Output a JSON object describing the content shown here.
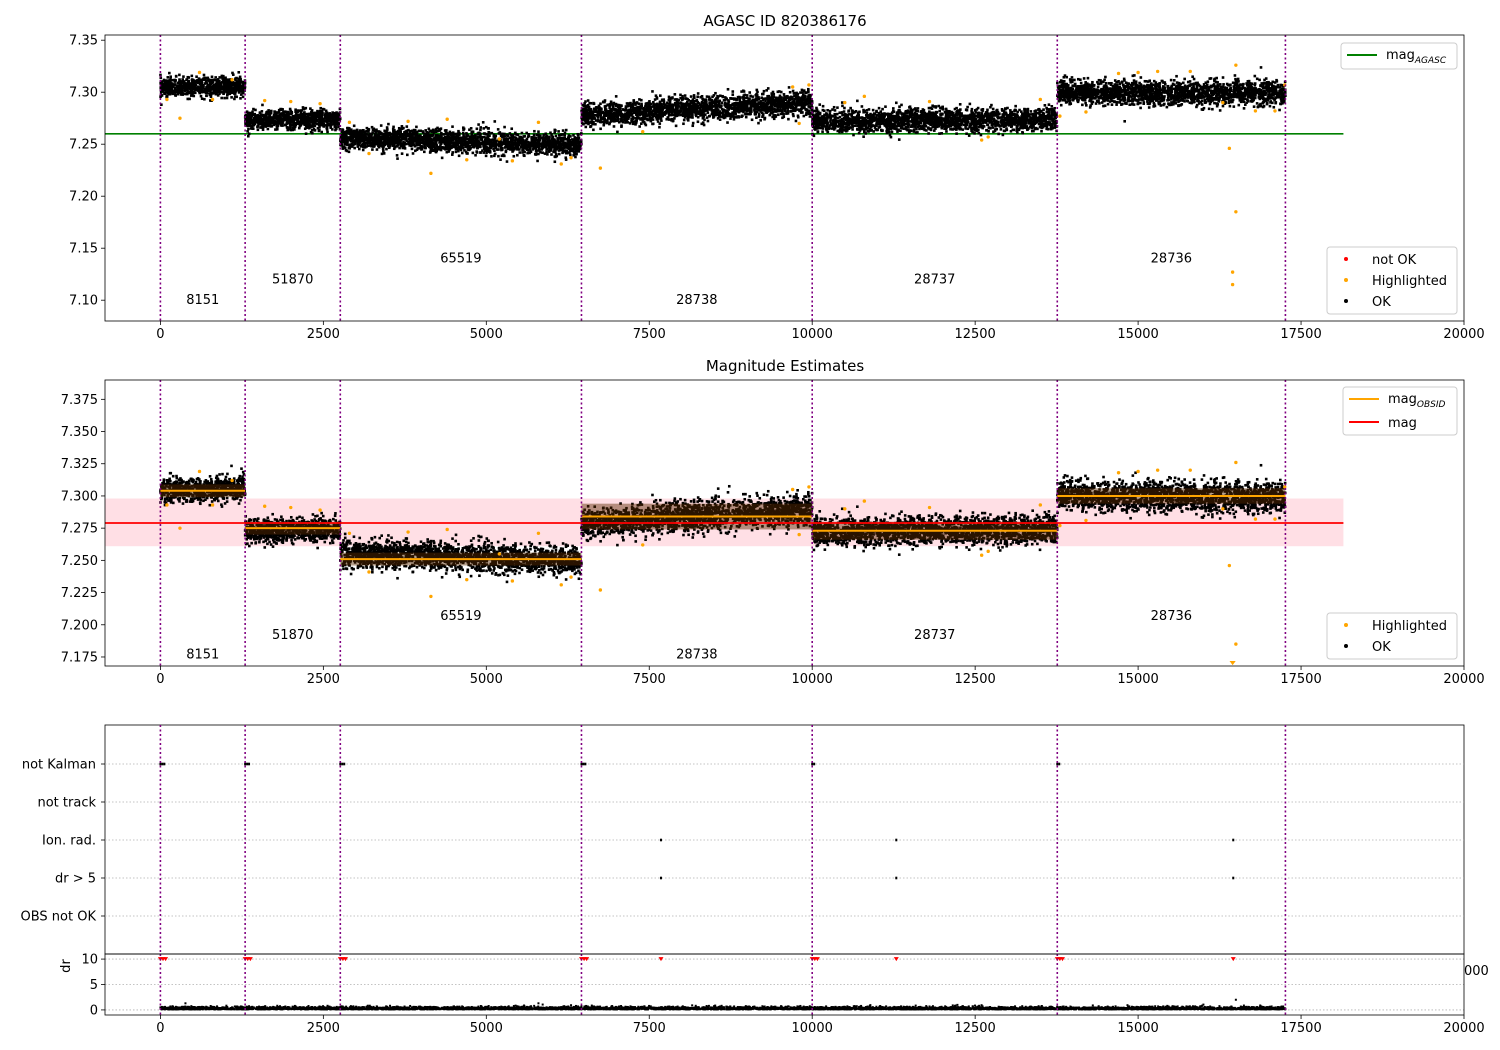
{
  "chart_data": [
    {
      "type": "scatter",
      "title": "AGASC ID 820386176",
      "xlim": [
        -850,
        20000
      ],
      "ylim": [
        7.08,
        7.355
      ],
      "xticks": [
        0,
        2500,
        5000,
        7500,
        10000,
        12500,
        15000,
        17500,
        20000
      ],
      "yticks": [
        7.1,
        7.15,
        7.2,
        7.25,
        7.3,
        7.35
      ],
      "ytick_labels": [
        "7.10",
        "7.15",
        "7.20",
        "7.25",
        "7.30",
        "7.35"
      ],
      "reference_line": {
        "name": "mag_AGASC",
        "y": 7.26,
        "x_range": [
          -850,
          18150
        ],
        "color": "#008000"
      },
      "observations": [
        {
          "obsid": "8151",
          "x_start": 0,
          "x_end": 1300,
          "mag_start": 7.304,
          "mag_end": 7.306,
          "spread": 0.012,
          "label_y": 7.1
        },
        {
          "obsid": "51870",
          "x_start": 1300,
          "x_end": 2760,
          "mag_start": 7.273,
          "mag_end": 7.274,
          "spread": 0.012,
          "label_y": 7.12
        },
        {
          "obsid": "65519",
          "x_start": 2760,
          "x_end": 6460,
          "mag_start": 7.256,
          "mag_end": 7.249,
          "spread": 0.014,
          "label_y": 7.14
        },
        {
          "obsid": "28738",
          "x_start": 6460,
          "x_end": 10000,
          "mag_start": 7.278,
          "mag_end": 7.29,
          "spread": 0.015,
          "label_y": 7.1
        },
        {
          "obsid": "28737",
          "x_start": 10000,
          "x_end": 13760,
          "mag_start": 7.272,
          "mag_end": 7.274,
          "spread": 0.014,
          "label_y": 7.12
        },
        {
          "obsid": "28736",
          "x_start": 13760,
          "x_end": 17260,
          "mag_start": 7.3,
          "mag_end": 7.299,
          "spread": 0.015,
          "label_y": 7.14
        }
      ],
      "boundaries": [
        0,
        1300,
        2760,
        6460,
        10000,
        13760,
        17260
      ],
      "highlighted_points": [
        [
          300,
          7.275
        ],
        [
          600,
          7.319
        ],
        [
          100,
          7.293
        ],
        [
          800,
          7.293
        ],
        [
          1100,
          7.312
        ],
        [
          1600,
          7.292
        ],
        [
          2000,
          7.291
        ],
        [
          2450,
          7.289
        ],
        [
          2900,
          7.271
        ],
        [
          3800,
          7.272
        ],
        [
          4150,
          7.222
        ],
        [
          4400,
          7.274
        ],
        [
          4700,
          7.235
        ],
        [
          5200,
          7.255
        ],
        [
          5800,
          7.271
        ],
        [
          6150,
          7.231
        ],
        [
          6300,
          7.237
        ],
        [
          6750,
          7.227
        ],
        [
          7400,
          7.262
        ],
        [
          9700,
          7.305
        ],
        [
          9950,
          7.307
        ],
        [
          10500,
          7.29
        ],
        [
          10800,
          7.296
        ],
        [
          12600,
          7.254
        ],
        [
          12700,
          7.257
        ],
        [
          13500,
          7.293
        ],
        [
          13800,
          7.277
        ],
        [
          14200,
          7.281
        ],
        [
          14700,
          7.318
        ],
        [
          15000,
          7.319
        ],
        [
          15300,
          7.32
        ],
        [
          15800,
          7.32
        ],
        [
          16400,
          7.246
        ],
        [
          16450,
          7.115
        ],
        [
          16450,
          7.127
        ],
        [
          16500,
          7.326
        ],
        [
          16500,
          7.185
        ],
        [
          16800,
          7.282
        ],
        [
          17100,
          7.282
        ],
        [
          17250,
          7.307
        ],
        [
          16300,
          7.29
        ],
        [
          3200,
          7.241
        ],
        [
          5400,
          7.234
        ],
        [
          9800,
          7.27
        ],
        [
          11800,
          7.291
        ]
      ],
      "legends": [
        {
          "entries": [
            {
              "name": "mag_AGASC",
              "marker": "line",
              "color": "#008000"
            }
          ],
          "position": "upper right"
        },
        {
          "entries": [
            {
              "name": "not OK",
              "marker": "dot",
              "color": "#ff0000"
            },
            {
              "name": "Highlighted",
              "marker": "dot",
              "color": "#ffa500"
            },
            {
              "name": "OK",
              "marker": "dot",
              "color": "#000000"
            }
          ],
          "position": "lower right"
        }
      ]
    },
    {
      "type": "scatter",
      "title": "Magnitude Estimates",
      "xlim": [
        -850,
        20000
      ],
      "ylim": [
        7.168,
        7.39
      ],
      "xticks": [
        0,
        2500,
        5000,
        7500,
        10000,
        12500,
        15000,
        17500,
        20000
      ],
      "yticks": [
        7.175,
        7.2,
        7.225,
        7.25,
        7.275,
        7.3,
        7.325,
        7.35,
        7.375
      ],
      "ytick_labels": [
        "7.175",
        "7.200",
        "7.225",
        "7.250",
        "7.275",
        "7.300",
        "7.325",
        "7.350",
        "7.375"
      ],
      "mag_line": {
        "name": "mag",
        "y": 7.279,
        "band": [
          7.261,
          7.298
        ],
        "x_range": [
          -850,
          18150
        ],
        "color": "#ff0000"
      },
      "obsid_mags": [
        {
          "x_range": [
            0,
            1300
          ],
          "mag": 7.304,
          "band": [
            7.299,
            7.309
          ]
        },
        {
          "x_range": [
            1300,
            2760
          ],
          "mag": 7.275,
          "band": [
            7.27,
            7.28
          ]
        },
        {
          "x_range": [
            2760,
            6460
          ],
          "mag": 7.251,
          "band": [
            7.246,
            7.256
          ]
        },
        {
          "x_range": [
            6460,
            10000
          ],
          "mag": 7.284,
          "band": [
            7.274,
            7.294
          ]
        },
        {
          "x_range": [
            10000,
            13760
          ],
          "mag": 7.273,
          "band": [
            7.266,
            7.28
          ]
        },
        {
          "x_range": [
            13760,
            17260
          ],
          "mag": 7.3,
          "band": [
            7.294,
            7.306
          ]
        }
      ],
      "obsid_labels": [
        {
          "obsid": "8151",
          "x": 650,
          "y": 7.177
        },
        {
          "obsid": "51870",
          "x": 2030,
          "y": 7.192
        },
        {
          "obsid": "65519",
          "x": 4610,
          "y": 7.207
        },
        {
          "obsid": "28738",
          "x": 8230,
          "y": 7.177
        },
        {
          "obsid": "28737",
          "x": 11880,
          "y": 7.192
        },
        {
          "obsid": "28736",
          "x": 15510,
          "y": 7.207
        }
      ],
      "legends": [
        {
          "entries": [
            {
              "name": "mag_OBSID",
              "marker": "line",
              "color": "#ffa500"
            },
            {
              "name": "mag",
              "marker": "line",
              "color": "#ff0000"
            }
          ],
          "position": "upper right"
        },
        {
          "entries": [
            {
              "name": "Highlighted",
              "marker": "dot",
              "color": "#ffa500"
            },
            {
              "name": "OK",
              "marker": "dot",
              "color": "#000000"
            }
          ],
          "position": "lower right"
        }
      ]
    },
    {
      "type": "scatter",
      "title": "",
      "categories": [
        "not Kalman",
        "not track",
        "Ion. rad.",
        "dr > 5",
        "OBS not OK"
      ],
      "flag_points": {
        "not Kalman": [
          0,
          30,
          60,
          1300,
          1330,
          1360,
          2760,
          2790,
          2820,
          6460,
          6490,
          6520,
          10000,
          10030,
          13760,
          13790
        ],
        "not track": [],
        "Ion. rad.": [
          7680,
          11290,
          16460
        ],
        "dr > 5": [
          7680,
          11290,
          16460
        ],
        "OBS not OK": []
      }
    },
    {
      "type": "scatter",
      "title": "",
      "ylabel": "dr",
      "xlim": [
        -850,
        20000
      ],
      "ylim": [
        -1,
        11
      ],
      "xticks": [
        0,
        2500,
        5000,
        7500,
        10000,
        12500,
        15000,
        17500,
        20000
      ],
      "yticks": [
        0,
        5,
        10
      ],
      "ytick_labels": [
        "0",
        "5",
        "10"
      ],
      "overflow_label": "000",
      "clipped_points": [
        0,
        40,
        80,
        1300,
        1340,
        1380,
        2760,
        2800,
        2840,
        6460,
        6500,
        6540,
        7680,
        10000,
        10040,
        10080,
        11290,
        13760,
        13800,
        13840,
        16460
      ]
    }
  ],
  "colors": {
    "ok": "#000000",
    "highlighted": "#ffa500",
    "not_ok": "#ff0000",
    "agasc_line": "#008000",
    "mag_line": "#ff0000",
    "mag_band": "#ffc0cb",
    "obsid_line": "#ffa500",
    "boundary": "#800080",
    "grid": "#b0b0b0"
  }
}
